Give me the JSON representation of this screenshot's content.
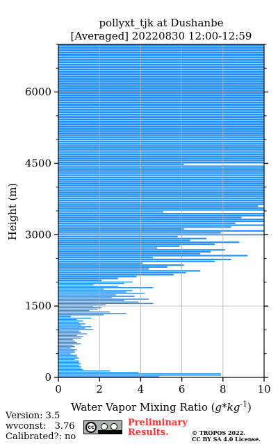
{
  "chart_data": {
    "type": "area",
    "title": "pollyxt_tjk at Dushanbe",
    "subtitle": "[Averaged] 20220830 12:00-12:59",
    "xlabel": "Water Vapor Mixing Ratio (g*kg^-1)",
    "ylabel": "Height (m)",
    "xlim": [
      0,
      10
    ],
    "ylim": [
      0,
      7000
    ],
    "xticks": [
      0,
      2,
      4,
      6,
      8,
      10
    ],
    "yticks": [
      0,
      1500,
      3000,
      4500,
      6000
    ],
    "grid": true,
    "color": "#1e90ff",
    "series": [
      {
        "profile": [
          [
            0,
            4.9
          ],
          [
            30,
            7.9
          ],
          [
            60,
            7.9
          ],
          [
            90,
            3.9
          ],
          [
            120,
            2.5
          ],
          [
            150,
            1.2
          ],
          [
            180,
            1.1
          ],
          [
            210,
            1.1
          ],
          [
            240,
            1.0
          ],
          [
            270,
            1.1
          ],
          [
            300,
            1.0
          ],
          [
            330,
            1.0
          ],
          [
            360,
            0.8
          ],
          [
            390,
            1.0
          ],
          [
            420,
            0.9
          ],
          [
            450,
            0.9
          ],
          [
            480,
            0.6
          ],
          [
            510,
            0.8
          ],
          [
            540,
            0.8
          ],
          [
            570,
            0.9
          ],
          [
            600,
            0.6
          ],
          [
            630,
            0.8
          ],
          [
            660,
            0.7
          ],
          [
            690,
            1.1
          ],
          [
            720,
            0.9
          ],
          [
            750,
            0.8
          ],
          [
            780,
            0.7
          ],
          [
            810,
            1.1
          ],
          [
            840,
            1.2
          ],
          [
            870,
            0.9
          ],
          [
            900,
            1.4
          ],
          [
            930,
            1.1
          ],
          [
            960,
            1.0
          ],
          [
            990,
            1.7
          ],
          [
            1020,
            1.3
          ],
          [
            1050,
            1.6
          ],
          [
            1080,
            1.1
          ],
          [
            1110,
            1.3
          ],
          [
            1140,
            1.0
          ],
          [
            1170,
            1.2
          ],
          [
            1200,
            0.9
          ],
          [
            1230,
            1.6
          ],
          [
            1260,
            0.6
          ],
          [
            1300,
            2.2
          ],
          [
            1330,
            3.3
          ],
          [
            1360,
            2.5
          ],
          [
            1390,
            1.5
          ],
          [
            1420,
            1.9
          ],
          [
            1450,
            2.1
          ],
          [
            1480,
            1.7
          ],
          [
            1510,
            2.3
          ],
          [
            1540,
            4.6
          ],
          [
            1570,
            3.9
          ],
          [
            1600,
            3.2
          ],
          [
            1630,
            4.4
          ],
          [
            1660,
            2.6
          ],
          [
            1690,
            3.7
          ],
          [
            1720,
            2.8
          ],
          [
            1750,
            4.2
          ],
          [
            1780,
            3.3
          ],
          [
            1810,
            3.6
          ],
          [
            1840,
            2.2
          ],
          [
            1870,
            4.6
          ],
          [
            1900,
            2.9
          ],
          [
            1930,
            1.7
          ],
          [
            1960,
            3.2
          ],
          [
            1990,
            3.6
          ],
          [
            2020,
            2.1
          ],
          [
            2060,
            2.9
          ],
          [
            2100,
            3.8
          ],
          [
            2140,
            5.6
          ],
          [
            2180,
            6.2
          ],
          [
            2220,
            6.9
          ],
          [
            2260,
            4.4
          ],
          [
            2300,
            5.3
          ],
          [
            2340,
            6.1
          ],
          [
            2380,
            4.1
          ],
          [
            2420,
            7.6
          ],
          [
            2460,
            8.4
          ],
          [
            2500,
            4.6
          ],
          [
            2540,
            9.2
          ],
          [
            2580,
            6.9
          ],
          [
            2620,
            7.4
          ],
          [
            2660,
            8.1
          ],
          [
            2700,
            4.8
          ],
          [
            2740,
            5.9
          ],
          [
            2780,
            7.6
          ],
          [
            2820,
            8.8
          ],
          [
            2860,
            6.4
          ],
          [
            2900,
            7.2
          ],
          [
            2940,
            5.8
          ],
          [
            2980,
            10.0
          ],
          [
            3020,
            7.9
          ],
          [
            3060,
            10.0
          ],
          [
            3100,
            6.1
          ],
          [
            3140,
            8.4
          ],
          [
            3180,
            10.0
          ],
          [
            3220,
            8.6
          ],
          [
            3260,
            10.0
          ],
          [
            3300,
            10.0
          ],
          [
            3340,
            8.9
          ],
          [
            3380,
            10.0
          ],
          [
            3420,
            10.0
          ],
          [
            3460,
            5.1
          ],
          [
            3500,
            10.0
          ],
          [
            3540,
            10.0
          ],
          [
            3580,
            9.7
          ],
          [
            3620,
            10.0
          ],
          [
            3660,
            10.0
          ],
          [
            3700,
            10.0
          ],
          [
            3740,
            10.0
          ],
          [
            3780,
            10.0
          ],
          [
            3820,
            10.0
          ],
          [
            3860,
            10.0
          ],
          [
            3900,
            10.0
          ],
          [
            3940,
            10.0
          ],
          [
            3980,
            10.0
          ],
          [
            4020,
            10.0
          ],
          [
            4060,
            10.0
          ],
          [
            4100,
            10.0
          ],
          [
            4140,
            10.0
          ],
          [
            4180,
            10.0
          ],
          [
            4220,
            10.0
          ],
          [
            4260,
            10.0
          ],
          [
            4300,
            10.0
          ],
          [
            4340,
            10.0
          ],
          [
            4380,
            10.0
          ],
          [
            4420,
            10.0
          ],
          [
            4460,
            6.1
          ],
          [
            4500,
            10.0
          ],
          [
            4540,
            10.0
          ],
          [
            4580,
            10.0
          ],
          [
            4620,
            10.0
          ],
          [
            4660,
            10.0
          ],
          [
            4700,
            10.0
          ],
          [
            4740,
            10.0
          ],
          [
            4780,
            10.0
          ],
          [
            4820,
            10.0
          ],
          [
            4860,
            10.0
          ],
          [
            4900,
            10.0
          ],
          [
            4940,
            10.0
          ],
          [
            4980,
            10.0
          ],
          [
            5020,
            10.0
          ],
          [
            5060,
            10.0
          ],
          [
            5100,
            10.0
          ],
          [
            5150,
            10.0
          ],
          [
            5200,
            10.0
          ],
          [
            5250,
            10.0
          ],
          [
            5300,
            10.0
          ],
          [
            5350,
            10.0
          ],
          [
            5400,
            10.0
          ],
          [
            5450,
            10.0
          ],
          [
            5500,
            10.0
          ],
          [
            5550,
            10.0
          ],
          [
            5600,
            10.0
          ],
          [
            5650,
            10.0
          ],
          [
            5700,
            10.0
          ],
          [
            5750,
            10.0
          ],
          [
            5800,
            10.0
          ],
          [
            5850,
            10.0
          ],
          [
            5900,
            10.0
          ],
          [
            5950,
            10.0
          ],
          [
            6000,
            10.0
          ],
          [
            6050,
            10.0
          ],
          [
            6100,
            10.0
          ],
          [
            6150,
            10.0
          ],
          [
            6200,
            10.0
          ],
          [
            6250,
            10.0
          ],
          [
            6300,
            10.0
          ],
          [
            6350,
            10.0
          ],
          [
            6400,
            10.0
          ],
          [
            6450,
            10.0
          ],
          [
            6500,
            10.0
          ],
          [
            6550,
            10.0
          ],
          [
            6600,
            10.0
          ],
          [
            6650,
            10.0
          ],
          [
            6700,
            10.0
          ],
          [
            6750,
            10.0
          ],
          [
            6800,
            10.0
          ],
          [
            6850,
            10.0
          ],
          [
            6900,
            10.0
          ],
          [
            6950,
            10.0
          ]
        ]
      }
    ]
  },
  "footer": {
    "version": "Version: 3.5",
    "wvconst": "wvconst:   3.76",
    "calibrated": "Calibrated?: no",
    "preliminary_1": "Preliminary",
    "preliminary_2": "Results.",
    "copyright_1": "© TROPOS 2022.",
    "copyright_2": "CC BY SA 4.0 License.",
    "license_badge": "cc-by-sa-badge"
  }
}
